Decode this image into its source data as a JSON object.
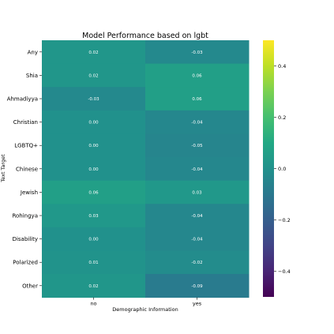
{
  "chart_data": {
    "type": "heatmap",
    "title": "Model Performance based on lgbt",
    "xlabel": "Demographic Information",
    "ylabel": "Text Target",
    "x_categories": [
      "no",
      "yes"
    ],
    "y_categories": [
      "Any",
      "Shia",
      "Ahmadiyya",
      "Christian",
      "LGBTQ+",
      "Chinese",
      "Jewish",
      "Rohingya",
      "Disability",
      "Polarized",
      "Other"
    ],
    "values": [
      [
        0.02,
        -0.03
      ],
      [
        0.02,
        0.06
      ],
      [
        -0.03,
        0.06
      ],
      [
        0.0,
        -0.04
      ],
      [
        0.0,
        -0.05
      ],
      [
        0.0,
        -0.04
      ],
      [
        0.06,
        0.03
      ],
      [
        0.03,
        -0.04
      ],
      [
        0.0,
        -0.04
      ],
      [
        0.01,
        -0.02
      ],
      [
        0.02,
        -0.09
      ]
    ],
    "annotations": [
      [
        "0.02",
        "-0.03"
      ],
      [
        "0.02",
        "0.06"
      ],
      [
        "-0.03",
        "0.06"
      ],
      [
        "0.00",
        "-0.04"
      ],
      [
        "0.00",
        "-0.05"
      ],
      [
        "0.00",
        "-0.04"
      ],
      [
        "0.06",
        "0.03"
      ],
      [
        "0.03",
        "-0.04"
      ],
      [
        "0.00",
        "-0.04"
      ],
      [
        "0.01",
        "-0.02"
      ],
      [
        "0.02",
        "-0.09"
      ]
    ],
    "colormap": "viridis",
    "vmin": -0.5,
    "vmax": 0.5,
    "colorbar_ticks": [
      0.4,
      0.2,
      0.0,
      -0.2,
      -0.4
    ],
    "colorbar_tick_labels": [
      "0.4",
      "0.2",
      "0.0",
      "−0.2",
      "−0.4"
    ],
    "grid": false,
    "legend": "colorbar-right"
  }
}
